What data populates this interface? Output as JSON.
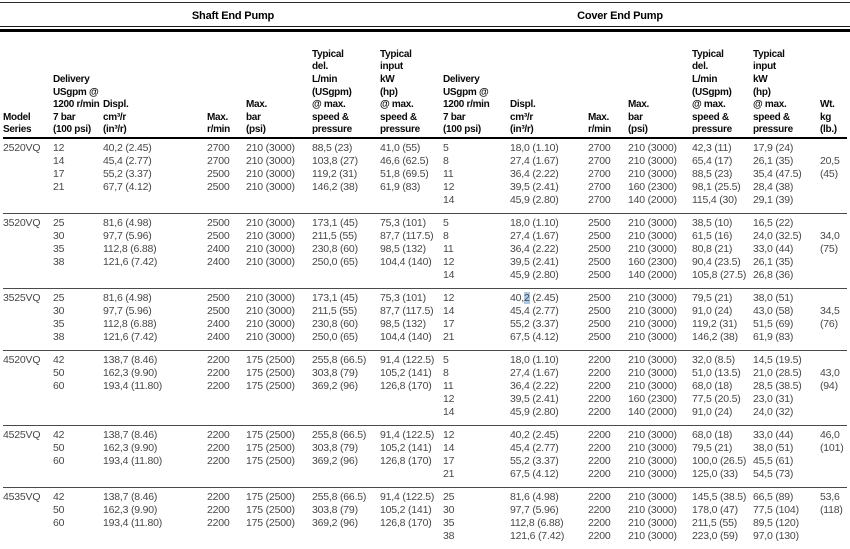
{
  "table": {
    "group_headers": {
      "shaft": "Shaft End Pump",
      "cover": "Cover End Pump"
    },
    "column_headers": {
      "model": [
        "Model",
        "Series"
      ],
      "delivery": [
        "Delivery",
        "USgpm @",
        "1200 r/min",
        "7 bar",
        "(100 psi)"
      ],
      "displ": [
        "Displ.",
        "cm³/r",
        "(in³/r)"
      ],
      "rpm": [
        "Max.",
        "r/min"
      ],
      "bar": [
        "Max.",
        "bar",
        "(psi)"
      ],
      "typ_del": [
        "Typical",
        "del.",
        "L/min",
        "(USgpm)",
        "@ max.",
        "speed &",
        "pressure"
      ],
      "typ_input": [
        "Typical",
        "input",
        "kW",
        "(hp)",
        "@ max.",
        "speed &",
        "pressure"
      ],
      "wt": [
        "Wt.",
        "kg",
        "(lb.)"
      ]
    },
    "blocks": [
      {
        "model": "2520VQ",
        "shaft": [
          [
            "12",
            "40,2 (2.45)",
            "2700",
            "210 (3000)",
            "88,5 (23)",
            "41,0 (55)"
          ],
          [
            "14",
            "45,4 (2.77)",
            "2700",
            "210 (3000)",
            "103,8 (27)",
            "46,6 (62.5)"
          ],
          [
            "17",
            "55,2 (3.37)",
            "2500",
            "210 (3000)",
            "119,2 (31)",
            "51,8 (69.5)"
          ],
          [
            "21",
            "67,7 (4.12)",
            "2500",
            "210 (3000)",
            "146,2 (38)",
            "61,9 (83)"
          ]
        ],
        "cover": [
          [
            "5",
            "18,0 (1.10)",
            "2700",
            "210 (3000)",
            "42,3 (11)",
            "17,9 (24)"
          ],
          [
            "8",
            "27,4 (1.67)",
            "2700",
            "210 (3000)",
            "65,4 (17)",
            "26,1 (35)"
          ],
          [
            "11",
            "36,4 (2.22)",
            "2700",
            "210 (3000)",
            "88,5 (23)",
            "35,4 (47.5)"
          ],
          [
            "12",
            "39,5 (2.41)",
            "2700",
            "160 (2300)",
            "98,1 (25.5)",
            "28,4 (38)"
          ],
          [
            "14",
            "45,9 (2.80)",
            "2700",
            "140 (2000)",
            "115,4 (30)",
            "29,1 (39)"
          ]
        ],
        "weight": {
          "kg": "20,5",
          "lb": "(45)",
          "kg_row": 1,
          "lb_row": 2
        }
      },
      {
        "model": "3520VQ",
        "shaft": [
          [
            "25",
            "81,6 (4.98)",
            "2500",
            "210 (3000)",
            "173,1 (45)",
            "75,3 (101)"
          ],
          [
            "30",
            "97,7 (5.96)",
            "2500",
            "210 (3000)",
            "211,5 (55)",
            "87,7 (117.5)"
          ],
          [
            "35",
            "112,8 (6.88)",
            "2400",
            "210 (3000)",
            "230,8 (60)",
            "98,5 (132)"
          ],
          [
            "38",
            "121,6 (7.42)",
            "2400",
            "210 (3000)",
            "250,0 (65)",
            "104,4 (140)"
          ]
        ],
        "cover": [
          [
            "5",
            "18,0 (1.10)",
            "2500",
            "210 (3000)",
            "38,5 (10)",
            "16,5 (22)"
          ],
          [
            "8",
            "27,4 (1.67)",
            "2500",
            "210 (3000)",
            "61,5 (16)",
            "24,0 (32.5)"
          ],
          [
            "11",
            "36,4 (2.22)",
            "2500",
            "210 (3000)",
            "80,8 (21)",
            "33,0 (44)"
          ],
          [
            "12",
            "39,5 (2.41)",
            "2500",
            "160 (2300)",
            "90,4 (23.5)",
            "26,1 (35)"
          ],
          [
            "14",
            "45,9 (2.80)",
            "2500",
            "140 (2000)",
            "105,8 (27.5)",
            "26,8 (36)"
          ]
        ],
        "weight": {
          "kg": "34,0",
          "lb": "(75)",
          "kg_row": 1,
          "lb_row": 2
        }
      },
      {
        "model": "3525VQ",
        "shaft": [
          [
            "25",
            "81,6 (4.98)",
            "2500",
            "210 (3000)",
            "173,1 (45)",
            "75,3 (101)"
          ],
          [
            "30",
            "97,7 (5.96)",
            "2500",
            "210 (3000)",
            "211,5 (55)",
            "87,7 (117.5)"
          ],
          [
            "35",
            "112,8 (6.88)",
            "2400",
            "210 (3000)",
            "230,8 (60)",
            "98,5 (132)"
          ],
          [
            "38",
            "121,6 (7.42)",
            "2400",
            "210 (3000)",
            "250,0 (65)",
            "104,4 (140)"
          ]
        ],
        "cover": [
          [
            "12",
            "40,2 (2.45)",
            "2500",
            "210 (3000)",
            "79,5 (21)",
            "38,0 (51)"
          ],
          [
            "14",
            "45,4 (2.77)",
            "2500",
            "210 (3000)",
            "91,0 (24)",
            "43,0 (58)"
          ],
          [
            "17",
            "55,2 (3.37)",
            "2500",
            "210 (3000)",
            "119,2 (31)",
            "51,5 (69)"
          ],
          [
            "21",
            "67,5 (4.12)",
            "2500",
            "210 (3000)",
            "146,2 (38)",
            "61,9 (83)"
          ]
        ],
        "weight": {
          "kg": "34,5",
          "lb": "(76)",
          "kg_row": 1,
          "lb_row": 2
        }
      },
      {
        "model": "4520VQ",
        "shaft": [
          [
            "42",
            "138,7 (8.46)",
            "2200",
            "175 (2500)",
            "255,8 (66.5)",
            "91,4 (122.5)"
          ],
          [
            "50",
            "162,3 (9.90)",
            "2200",
            "175 (2500)",
            "303,8 (79)",
            "105,2 (141)"
          ],
          [
            "60",
            "193,4 (11.80)",
            "2200",
            "175 (2500)",
            "369,2 (96)",
            "126,8 (170)"
          ]
        ],
        "cover": [
          [
            "5",
            "18,0 (1.10)",
            "2200",
            "210 (3000)",
            "32,0 (8.5)",
            "14,5 (19.5)"
          ],
          [
            "8",
            "27,4 (1.67)",
            "2200",
            "210 (3000)",
            "51,0 (13.5)",
            "21,0 (28.5)"
          ],
          [
            "11",
            "36,4 (2.22)",
            "2200",
            "210 (3000)",
            "68,0 (18)",
            "28,5 (38.5)"
          ],
          [
            "12",
            "39,5 (2.41)",
            "2200",
            "160 (2300)",
            "77,5 (20.5)",
            "23,0 (31)"
          ],
          [
            "14",
            "45,9 (2.80)",
            "2200",
            "140 (2000)",
            "91,0 (24)",
            "24,0 (32)"
          ]
        ],
        "weight": {
          "kg": "43,0",
          "lb": "(94)",
          "kg_row": 1,
          "lb_row": 2
        }
      },
      {
        "model": "4525VQ",
        "shaft": [
          [
            "42",
            "138,7 (8.46)",
            "2200",
            "175 (2500)",
            "255,8 (66.5)",
            "91,4 (122.5)"
          ],
          [
            "50",
            "162,3 (9.90)",
            "2200",
            "175 (2500)",
            "303,8 (79)",
            "105,2 (141)"
          ],
          [
            "60",
            "193,4 (11.80)",
            "2200",
            "175 (2500)",
            "369,2 (96)",
            "126,8 (170)"
          ]
        ],
        "cover": [
          [
            "12",
            "40,2 (2.45)",
            "2200",
            "210 (3000)",
            "68,0 (18)",
            "33,0 (44)"
          ],
          [
            "14",
            "45,4 (2.77)",
            "2200",
            "210 (3000)",
            "79,5 (21)",
            "38,0 (51)"
          ],
          [
            "17",
            "55,2 (3.37)",
            "2200",
            "210 (3000)",
            "100,0 (26.5)",
            "45,5 (61)"
          ],
          [
            "21",
            "67,5 (4.12)",
            "2200",
            "210 (3000)",
            "125,0 (33)",
            "54,5 (73)"
          ]
        ],
        "weight": {
          "kg": "46,0",
          "lb": "(101)",
          "kg_row": 0,
          "lb_row": 1
        }
      },
      {
        "model": "4535VQ",
        "shaft": [
          [
            "42",
            "138,7 (8.46)",
            "2200",
            "175 (2500)",
            "255,8 (66.5)",
            "91,4 (122.5)"
          ],
          [
            "50",
            "162,3 (9.90)",
            "2200",
            "175 (2500)",
            "303,8 (79)",
            "105,2 (141)"
          ],
          [
            "60",
            "193,4 (11.80)",
            "2200",
            "175 (2500)",
            "369,2 (96)",
            "126,8 (170)"
          ]
        ],
        "cover": [
          [
            "25",
            "81,6 (4.98)",
            "2200",
            "210 (3000)",
            "145,5 (38.5)",
            "66,5 (89)"
          ],
          [
            "30",
            "97,7 (5.96)",
            "2200",
            "210 (3000)",
            "178,0 (47)",
            "77,5 (104)"
          ],
          [
            "35",
            "112,8 (6.88)",
            "2200",
            "210 (3000)",
            "211,5 (55)",
            "89,5 (120)"
          ],
          [
            "38",
            "121,6 (7.42)",
            "2200",
            "210 (3000)",
            "223,0 (59)",
            "97,0 (130)"
          ]
        ],
        "weight": {
          "kg": "53,6",
          "lb": "(118)",
          "kg_row": 0,
          "lb_row": 1
        }
      }
    ],
    "highlight": {
      "model": "3525VQ",
      "side": "cover",
      "row": 0,
      "col": 1,
      "start": 3,
      "end": 4,
      "color": "#a9c9e7",
      "selected_char": "2"
    }
  }
}
